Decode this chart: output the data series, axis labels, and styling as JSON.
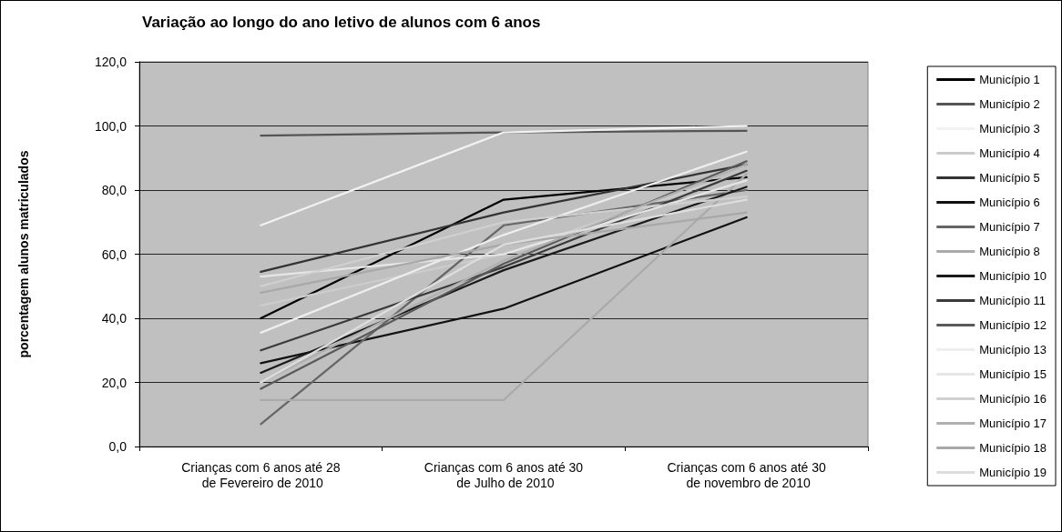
{
  "chart_data": {
    "type": "line",
    "title": "Variação ao longo do ano letivo de alunos com 6 anos",
    "ylabel": "porcentagem alunos matriculados",
    "categories": [
      "Crianças com 6 anos até 28 de Fevereiro de 2010",
      "Crianças com 6 anos até 30 de Julho de 2010",
      "Crianças com 6 anos até 30 de novembro de 2010"
    ],
    "series": [
      {
        "name": "Município 1",
        "color": "#000000",
        "values": [
          40,
          77,
          84
        ]
      },
      {
        "name": "Município 2",
        "color": "#555555",
        "values": [
          97,
          98,
          98.5
        ]
      },
      {
        "name": "Município 3",
        "color": "#f2f2f2",
        "values": [
          69,
          98,
          100
        ]
      },
      {
        "name": "Município 4",
        "color": "#cccccc",
        "values": [
          44,
          60,
          86
        ]
      },
      {
        "name": "Município 5",
        "color": "#333333",
        "values": [
          54.5,
          73,
          88
        ]
      },
      {
        "name": "Município 6",
        "color": "#111111",
        "values": [
          26,
          43,
          71.5
        ]
      },
      {
        "name": "Município 7",
        "color": "#666666",
        "values": [
          7,
          69,
          80
        ]
      },
      {
        "name": "Município 8",
        "color": "#aaaaaa",
        "values": [
          14.5,
          14.5,
          85
        ]
      },
      {
        "name": "Município 10",
        "color": "#1a1a1a",
        "values": [
          23,
          55,
          81
        ]
      },
      {
        "name": "Município 11",
        "color": "#3a3a3a",
        "values": [
          30,
          56,
          86
        ]
      },
      {
        "name": "Município 12",
        "color": "#5a5a5a",
        "values": [
          18,
          57,
          89
        ]
      },
      {
        "name": "Município 13",
        "color": "#eeeeee",
        "values": [
          35.5,
          66,
          92
        ]
      },
      {
        "name": "Município 15",
        "color": "#e6e6e6",
        "values": [
          53,
          60,
          83
        ]
      },
      {
        "name": "Município 16",
        "color": "#d0d0d0",
        "values": [
          50,
          70,
          78
        ]
      },
      {
        "name": "Município 17",
        "color": "#b0b0b0",
        "values": [
          20,
          58,
          88
        ]
      },
      {
        "name": "Município 18",
        "color": "#a8a8a8",
        "values": [
          48,
          63,
          73
        ]
      },
      {
        "name": "Município 19",
        "color": "#dddddd",
        "values": [
          20,
          63,
          77
        ]
      }
    ],
    "ylim": [
      0,
      120
    ],
    "yticks": [
      {
        "value": 0,
        "label": "0,0"
      },
      {
        "value": 20,
        "label": "20,0"
      },
      {
        "value": 40,
        "label": "40,0"
      },
      {
        "value": 60,
        "label": "60,0"
      },
      {
        "value": 80,
        "label": "80,0"
      },
      {
        "value": 100,
        "label": "100,0"
      },
      {
        "value": 120,
        "label": "120,0"
      }
    ],
    "grid": "y",
    "legend": "right",
    "marker": "none",
    "line_style": "solid"
  }
}
